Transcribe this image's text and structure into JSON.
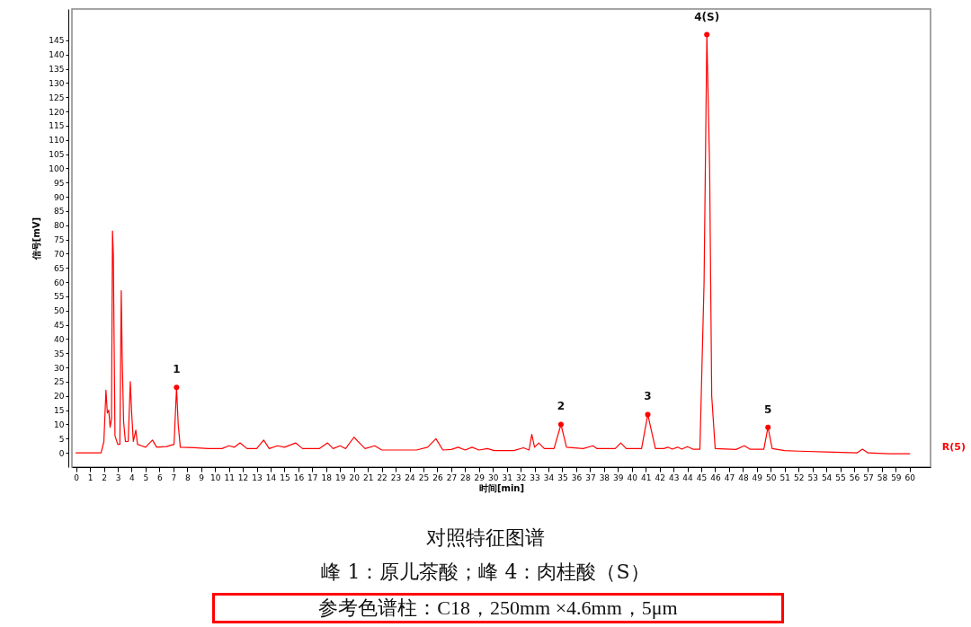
{
  "chart_data": {
    "type": "line",
    "title": "对照特征图谱",
    "subtitle": "峰 1：原儿茶酸；峰 4：肉桂酸（S）",
    "xlabel": "时间[min]",
    "ylabel": "信号[mV]",
    "xlim": [
      -0.3,
      61.5
    ],
    "ylim": [
      -5,
      156
    ],
    "xticks": [
      0,
      1,
      2,
      3,
      4,
      5,
      6,
      7,
      8,
      9,
      10,
      11,
      12,
      13,
      14,
      15,
      16,
      17,
      18,
      19,
      20,
      21,
      22,
      23,
      24,
      25,
      26,
      27,
      28,
      29,
      30,
      31,
      32,
      33,
      34,
      35,
      36,
      37,
      38,
      39,
      40,
      41,
      42,
      43,
      44,
      45,
      46,
      47,
      48,
      49,
      50,
      51,
      52,
      53,
      54,
      55,
      56,
      57,
      58,
      59,
      60
    ],
    "yticks": [
      0,
      5,
      10,
      15,
      20,
      25,
      30,
      35,
      40,
      45,
      50,
      55,
      60,
      65,
      70,
      75,
      80,
      85,
      90,
      95,
      100,
      105,
      110,
      115,
      120,
      125,
      130,
      135,
      140,
      145
    ],
    "grid": false,
    "series": [
      {
        "name": "R(5)",
        "color": "#ff0000",
        "x": [
          0,
          1.8,
          2.0,
          2.15,
          2.25,
          2.35,
          2.45,
          2.55,
          2.62,
          2.68,
          2.8,
          3.0,
          3.15,
          3.25,
          3.32,
          3.42,
          3.55,
          3.75,
          3.9,
          4.0,
          4.12,
          4.3,
          4.42,
          4.7,
          5.0,
          5.5,
          5.8,
          6.5,
          7.05,
          7.23,
          7.35,
          7.5,
          8.5,
          9.5,
          10.5,
          11.0,
          11.4,
          11.8,
          12.3,
          13.0,
          13.5,
          13.9,
          14.5,
          15.0,
          15.8,
          16.3,
          17.5,
          18.1,
          18.5,
          19.0,
          19.4,
          20.0,
          20.4,
          20.8,
          21.5,
          22.0,
          24.5,
          25.3,
          25.9,
          26.4,
          27.0,
          27.5,
          28.0,
          28.5,
          29.0,
          29.6,
          30.1,
          31.5,
          32.2,
          32.6,
          32.8,
          33.0,
          33.3,
          33.7,
          34.4,
          34.9,
          35.3,
          36.5,
          37.2,
          37.5,
          38.8,
          39.2,
          39.6,
          40.7,
          41.15,
          41.4,
          41.7,
          42.3,
          42.6,
          42.9,
          43.3,
          43.6,
          44.0,
          44.4,
          44.9,
          45.2,
          45.4,
          45.6,
          45.75,
          46.0,
          47.5,
          48.1,
          48.5,
          49.5,
          49.8,
          50.1,
          51.0,
          52,
          54,
          56.2,
          56.6,
          57,
          58.5,
          60
        ],
        "values": [
          0,
          0,
          4,
          22,
          14,
          15,
          9,
          12,
          78,
          70,
          6,
          3,
          3,
          57,
          33,
          11,
          4,
          4,
          25,
          14,
          4,
          8,
          3,
          2.5,
          2,
          4.5,
          2,
          2.2,
          3,
          23,
          10,
          2,
          1.8,
          1.5,
          1.5,
          2.5,
          2,
          3.5,
          1.5,
          1.5,
          4.5,
          1.5,
          2.5,
          2,
          3.5,
          1.5,
          1.5,
          3.5,
          1.5,
          2.5,
          1.5,
          5.5,
          3.5,
          1.5,
          2.5,
          1,
          1,
          2,
          5,
          1,
          1.2,
          2,
          1,
          2,
          1,
          1.5,
          0.8,
          0.8,
          1.8,
          1,
          6.5,
          2,
          3.5,
          1.5,
          1.5,
          10,
          2,
          1.5,
          2.5,
          1.5,
          1.5,
          3.5,
          1.5,
          1.5,
          13.5,
          8,
          1.5,
          1.5,
          2,
          1.3,
          2,
          1.3,
          2.2,
          1.3,
          1.3,
          60,
          147,
          100,
          20,
          1.5,
          1.2,
          2.5,
          1.3,
          1.3,
          9,
          1.5,
          0.8,
          0.6,
          0.3,
          0,
          1.3,
          0,
          -0.3,
          -0.3
        ]
      },
      {
        "type": "scatter",
        "color": "#ff0000",
        "marker": "circle",
        "x": [
          7.23,
          34.9,
          41.15,
          45.4,
          49.8
        ],
        "values": [
          23,
          10,
          13.5,
          147,
          9
        ]
      }
    ],
    "annotations": [
      {
        "text": "1",
        "x": 7.23,
        "y": 23
      },
      {
        "text": "2",
        "x": 34.9,
        "y": 10
      },
      {
        "text": "3",
        "x": 41.15,
        "y": 13.5
      },
      {
        "text": "4(S)",
        "x": 45.4,
        "y": 147
      },
      {
        "text": "5",
        "x": 49.8,
        "y": 9
      },
      "参考色谱柱：C18，250mm ×4.6mm，5μm"
    ]
  }
}
